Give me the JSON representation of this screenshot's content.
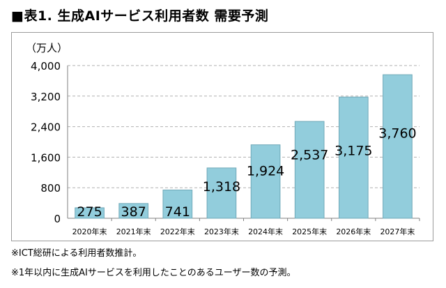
{
  "title": "■表1. 生成AIサービス利用者数 需要予測",
  "chart_data": {
    "type": "bar",
    "title": "■表1. 生成AIサービス利用者数 需要予測",
    "ylabel": "（万人）",
    "xlabel": "",
    "categories": [
      "2020年末",
      "2021年末",
      "2022年末",
      "2023年末",
      "2024年末",
      "2025年末",
      "2026年末",
      "2027年末"
    ],
    "values": [
      275,
      387,
      741,
      1318,
      1924,
      2537,
      3175,
      3760
    ],
    "value_labels": [
      "275",
      "387",
      "741",
      "1,318",
      "1,924",
      "2,537",
      "3,175",
      "3,760"
    ],
    "ylim": [
      0,
      4000
    ],
    "yticks": [
      0,
      800,
      1600,
      2400,
      3200,
      4000
    ],
    "ytick_labels": [
      "0",
      "800",
      "1,600",
      "2,400",
      "3,200",
      "4,000"
    ],
    "grid": true,
    "bar_color": "#92cddc",
    "bar_edge_color": "#6fa8b8",
    "grid_color": "#b0b0b0"
  },
  "notes": [
    "※ICT総研による利用者数推計。",
    "※1年以内に生成AIサービスを利用したことのあるユーザー数の予測。"
  ]
}
